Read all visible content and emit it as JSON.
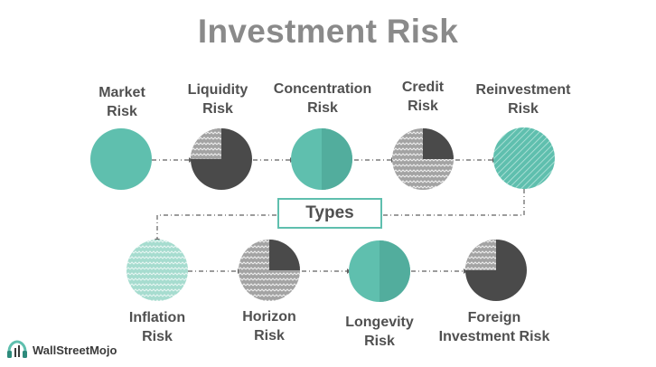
{
  "title": "Investment Risk",
  "center_label": "Types",
  "colors": {
    "teal": "#5fbfae",
    "light_teal": "#a9ddd3",
    "dark": "#4a4a4a",
    "gray_pattern": "#9a9a9a",
    "title": "#8a8a8a"
  },
  "row1": [
    {
      "line1": "Market",
      "line2": "Risk",
      "style": "solid-teal"
    },
    {
      "line1": "Liquidity",
      "line2": "Risk",
      "style": "dark-quarter-pattern"
    },
    {
      "line1": "Concentration",
      "line2": "Risk",
      "style": "teal-half"
    },
    {
      "line1": "Credit",
      "line2": "Risk",
      "style": "pattern-dark-quarter"
    },
    {
      "line1": "Reinvestment",
      "line2": "Risk",
      "style": "teal-striped"
    }
  ],
  "row2": [
    {
      "line1": "Inflation",
      "line2": "Risk",
      "style": "light-teal-zigzag"
    },
    {
      "line1": "Horizon",
      "line2": "Risk",
      "style": "pattern-dark-quarter"
    },
    {
      "line1": "Longevity",
      "line2": "Risk",
      "style": "teal-half"
    },
    {
      "line1": "Foreign",
      "line2": "Investment Risk",
      "style": "dark-quarter-pattern"
    }
  ],
  "brand": {
    "name": "WallStreetMojo"
  }
}
